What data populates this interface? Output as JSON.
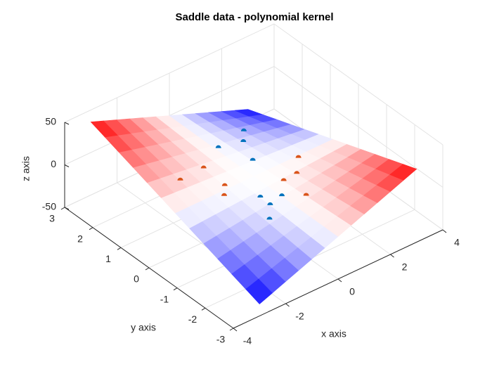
{
  "chart_data": {
    "type": "surface",
    "title": "Saddle data - polynomial kernel",
    "xlabel": "x axis",
    "ylabel": "y axis",
    "zlabel": "z axis",
    "xlim": [
      -4,
      4
    ],
    "xticks": [
      -4,
      -2,
      0,
      2,
      4
    ],
    "ylim": [
      -3,
      3
    ],
    "yticks": [
      -3,
      -2,
      -1,
      0,
      1,
      2,
      3
    ],
    "zlim": [
      -50,
      50
    ],
    "zticks": [
      -50,
      0,
      50
    ],
    "grid": true,
    "colormap": [
      "#0000ff",
      "#ffffff",
      "#ff0000"
    ],
    "clim": [
      -36,
      36
    ],
    "surface": {
      "x": [
        -3,
        -2.5,
        -2,
        -1.5,
        -1,
        -0.5,
        0,
        0.5,
        1,
        1.5,
        2,
        2.5,
        3
      ],
      "y": [
        -3,
        -2.5,
        -2,
        -1.5,
        -1,
        -0.5,
        0,
        0.5,
        1,
        1.5,
        2,
        2.5,
        3
      ],
      "z": [
        [
          -36,
          -30,
          -24,
          -18,
          -12,
          -6,
          0,
          6,
          12,
          18,
          24,
          30,
          36
        ],
        [
          -30,
          -25,
          -20,
          -15,
          -10,
          -5,
          0,
          5,
          10,
          15,
          20,
          25,
          30
        ],
        [
          -24,
          -20,
          -16,
          -12,
          -8,
          -4,
          0,
          4,
          8,
          12,
          16,
          20,
          24
        ],
        [
          -18,
          -15,
          -12,
          -9,
          -6,
          -3,
          0,
          3,
          6,
          9,
          12,
          15,
          18
        ],
        [
          -12,
          -10,
          -8,
          -6,
          -4,
          -2,
          0,
          2,
          4,
          6,
          8,
          10,
          12
        ],
        [
          -6,
          -5,
          -4,
          -3,
          -2,
          -1,
          0,
          1,
          2,
          3,
          4,
          5,
          6
        ],
        [
          0,
          0,
          0,
          0,
          0,
          0,
          0,
          0,
          0,
          0,
          0,
          0,
          0
        ],
        [
          6,
          5,
          4,
          3,
          2,
          1,
          0,
          -1,
          -2,
          -3,
          -4,
          -5,
          -6
        ],
        [
          12,
          10,
          8,
          6,
          4,
          2,
          0,
          -2,
          -4,
          -6,
          -8,
          -10,
          -12
        ],
        [
          18,
          15,
          12,
          9,
          6,
          3,
          0,
          -3,
          -6,
          -9,
          -12,
          -15,
          -18
        ],
        [
          24,
          20,
          16,
          12,
          8,
          4,
          0,
          -4,
          -8,
          -12,
          -16,
          -20,
          -24
        ],
        [
          30,
          25,
          20,
          15,
          10,
          5,
          0,
          -5,
          -10,
          -15,
          -20,
          -25,
          -30
        ],
        [
          36,
          30,
          24,
          18,
          12,
          6,
          0,
          -6,
          -12,
          -18,
          -24,
          -30,
          -36
        ]
      ]
    },
    "scatter": [
      {
        "color": "#d95319",
        "x": [
          -2,
          -1,
          -1,
          -1.3,
          1.6,
          1,
          0.5,
          0.5
        ],
        "y": [
          0.75,
          0.85,
          0.1,
          -0.16,
          -0.1,
          -0.6,
          -0.6,
          -1.4
        ],
        "z": [
          6,
          3.4,
          0.4,
          -0.8,
          0.6,
          2.4,
          1.2,
          2.8
        ]
      },
      {
        "color": "#0072bd",
        "x": [
          1.5,
          1,
          0.1,
          0.5,
          -0.5,
          -0.5,
          0,
          -0.9
        ],
        "y": [
          1.75,
          1.3,
          1.35,
          0.5,
          -0.7,
          -1.05,
          -1,
          -1.4
        ],
        "z": [
          -10.5,
          -5.2,
          -0.5,
          -1,
          -1.4,
          -2.1,
          0,
          -5
        ]
      }
    ]
  }
}
